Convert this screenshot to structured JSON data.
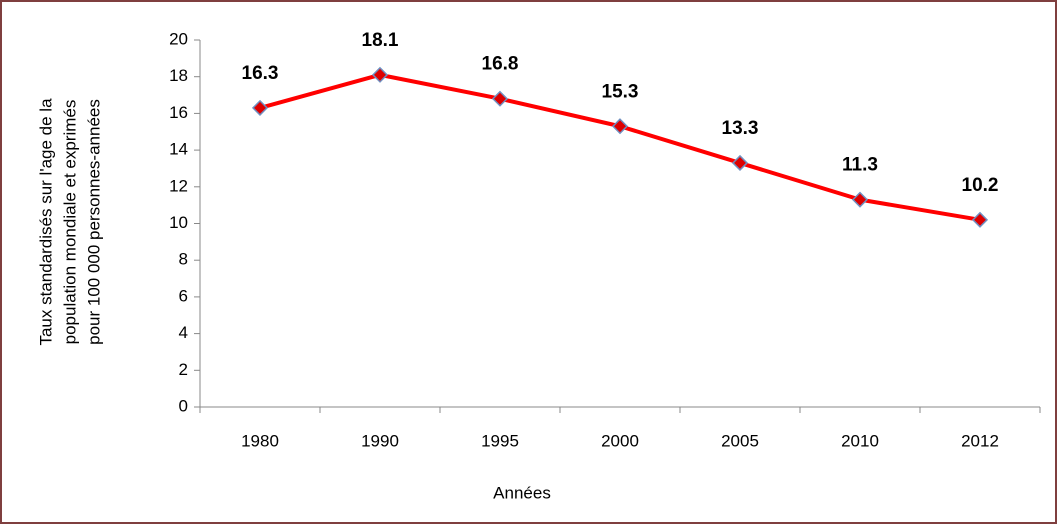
{
  "chart_data": {
    "type": "line",
    "categories": [
      "1980",
      "1990",
      "1995",
      "2000",
      "2005",
      "2010",
      "2012"
    ],
    "series": [
      {
        "color": "#ff0000",
        "marker_color": "#dd0000",
        "marker_edge": "#6f8fc0",
        "values": [
          16.3,
          18.1,
          16.8,
          15.3,
          13.3,
          11.3,
          10.2
        ]
      }
    ],
    "ylim": [
      0,
      20
    ],
    "yticks": [
      0,
      2,
      4,
      6,
      8,
      10,
      12,
      14,
      16,
      18,
      20
    ],
    "ylabel": [
      "Taux standardisés sur l'age de la",
      "population mondiale et exprimés",
      "pour 100 000 personnes-années"
    ],
    "xlabel": "Années",
    "grid": false,
    "data_labels": true
  }
}
